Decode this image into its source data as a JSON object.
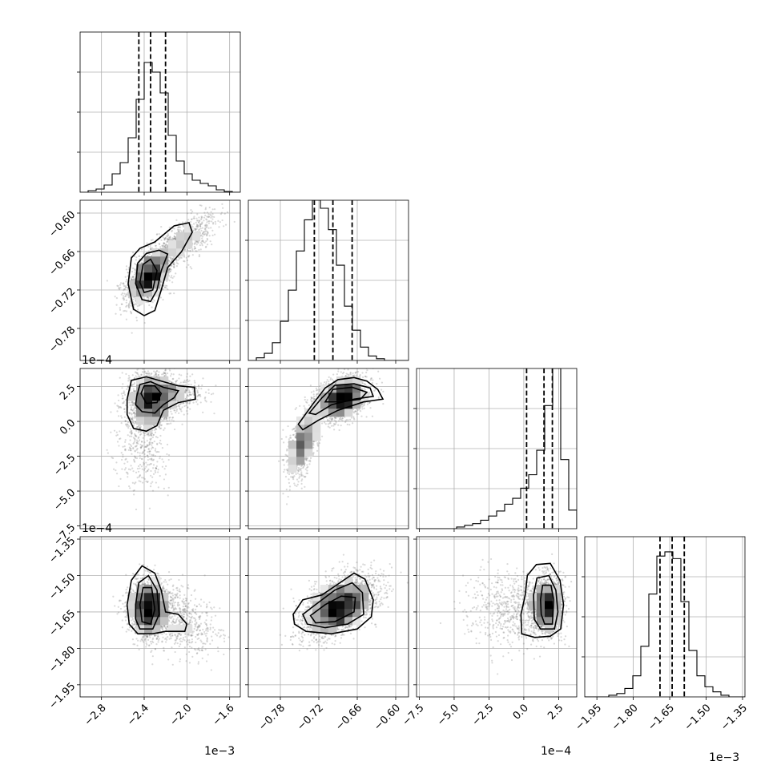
{
  "chart_data": {
    "type": "corner",
    "parameters": [
      {
        "range": [
          -3.0,
          -1.5
        ],
        "ticks": [
          -2.8,
          -2.4,
          -2.0,
          -1.6
        ],
        "tick_labels": [
          "−2.8",
          "−2.4",
          "−2.0",
          "−1.6"
        ],
        "offset_label": "1e−3",
        "quantiles": [
          -2.45,
          -2.34,
          -2.2
        ]
      },
      {
        "range": [
          -0.83,
          -0.58
        ],
        "ticks": [
          -0.78,
          -0.72,
          -0.66,
          -0.6
        ],
        "tick_labels": [
          "−0.78",
          "−0.72",
          "−0.66",
          "−0.60"
        ],
        "offset_label": "1e−4",
        "quantiles": [
          -0.727,
          -0.698,
          -0.668
        ]
      },
      {
        "range": [
          -7.7,
          3.8
        ],
        "ticks": [
          -7.5,
          -5.0,
          -2.5,
          0.0,
          2.5
        ],
        "tick_labels": [
          "−7.5",
          "−5.0",
          "−2.5",
          "0.0",
          "2.5"
        ],
        "offset_label": "1e−4",
        "quantiles": [
          0.2,
          1.45,
          2.05
        ]
      },
      {
        "range": [
          -2.0,
          -1.34
        ],
        "ticks": [
          -1.95,
          -1.8,
          -1.65,
          -1.5,
          -1.35
        ],
        "tick_labels": [
          "−1.95",
          "−1.80",
          "−1.65",
          "−1.50",
          "−1.35"
        ],
        "offset_label": "1e−3",
        "quantiles": [
          -1.69,
          -1.64,
          -1.59
        ]
      }
    ],
    "histograms": [
      {
        "param": 0,
        "edges_start": -3.0,
        "bin_width": 0.075,
        "counts": [
          0,
          2,
          4,
          9,
          23,
          37,
          68,
          116,
          162,
          150,
          124,
          71,
          39,
          23,
          15,
          11,
          8,
          3,
          1,
          0
        ],
        "ymax": 200
      },
      {
        "param": 1,
        "edges_start": -0.83,
        "bin_width": 0.0125,
        "counts": [
          0,
          3,
          8,
          20,
          44,
          79,
          123,
          158,
          180,
          171,
          147,
          107,
          61,
          34,
          15,
          5,
          2,
          0,
          0,
          0
        ],
        "ymax": 180
      },
      {
        "param": 2,
        "edges_start": -7.7,
        "bin_width": 0.575,
        "counts": [
          0,
          0,
          0,
          0,
          0,
          2,
          4,
          6,
          10,
          15,
          21,
          29,
          36,
          48,
          64,
          93,
          146,
          190,
          82,
          22
        ],
        "ymax": 190
      },
      {
        "param": 3,
        "edges_start": -2.0,
        "bin_width": 0.033,
        "counts": [
          0,
          0,
          0,
          2,
          4,
          10,
          25,
          60,
          122,
          167,
          172,
          164,
          113,
          55,
          25,
          12,
          6,
          2,
          0,
          0
        ],
        "ymax": 190
      }
    ],
    "scatter_2d": [
      {
        "x_param": 0,
        "y_param": 1,
        "components": [
          {
            "mx": -2.36,
            "my": -0.7,
            "sx": 0.1,
            "sy": 0.02,
            "rho": 0.55,
            "w": 0.7
          },
          {
            "mx": -2.05,
            "my": -0.645,
            "sx": 0.16,
            "sy": 0.022,
            "rho": 0.7,
            "w": 0.3
          }
        ],
        "contours": [
          [
            [
              -2.55,
              -0.71
            ],
            [
              -2.52,
              -0.67
            ],
            [
              -2.44,
              -0.655
            ],
            [
              -2.3,
              -0.645
            ],
            [
              -2.12,
              -0.62
            ],
            [
              -1.98,
              -0.615
            ],
            [
              -1.95,
              -0.63
            ],
            [
              -2.05,
              -0.66
            ],
            [
              -2.18,
              -0.685
            ],
            [
              -2.24,
              -0.72
            ],
            [
              -2.3,
              -0.752
            ],
            [
              -2.4,
              -0.76
            ],
            [
              -2.5,
              -0.75
            ]
          ],
          [
            [
              -2.48,
              -0.71
            ],
            [
              -2.46,
              -0.678
            ],
            [
              -2.38,
              -0.663
            ],
            [
              -2.26,
              -0.658
            ],
            [
              -2.18,
              -0.664
            ],
            [
              -2.24,
              -0.69
            ],
            [
              -2.28,
              -0.72
            ],
            [
              -2.34,
              -0.738
            ],
            [
              -2.42,
              -0.735
            ]
          ],
          [
            [
              -2.44,
              -0.708
            ],
            [
              -2.41,
              -0.68
            ],
            [
              -2.34,
              -0.672
            ],
            [
              -2.28,
              -0.69
            ],
            [
              -2.32,
              -0.72
            ],
            [
              -2.4,
              -0.724
            ]
          ]
        ]
      },
      {
        "x_param": 0,
        "y_param": 2,
        "components": [
          {
            "mx": -2.33,
            "my": 1.6,
            "sx": 0.11,
            "sy": 1.0,
            "rho": 0.1,
            "w": 0.65
          },
          {
            "mx": -2.15,
            "my": 2.0,
            "sx": 0.15,
            "sy": 0.5,
            "rho": 0.0,
            "w": 0.2
          },
          {
            "mx": -2.42,
            "my": -1.8,
            "sx": 0.12,
            "sy": 1.6,
            "rho": 0.0,
            "w": 0.15
          }
        ],
        "contours": [
          [
            [
              -2.56,
              1.6
            ],
            [
              -2.52,
              2.95
            ],
            [
              -2.38,
              3.2
            ],
            [
              -2.22,
              2.85
            ],
            [
              -2.08,
              2.55
            ],
            [
              -1.93,
              2.45
            ],
            [
              -1.92,
              1.6
            ],
            [
              -2.08,
              1.35
            ],
            [
              -2.22,
              0.8
            ],
            [
              -2.28,
              -0.3
            ],
            [
              -2.38,
              -0.7
            ],
            [
              -2.5,
              -0.5
            ],
            [
              -2.56,
              0.5
            ]
          ],
          [
            [
              -2.47,
              1.8
            ],
            [
              -2.44,
              2.65
            ],
            [
              -2.34,
              2.85
            ],
            [
              -2.22,
              2.45
            ],
            [
              -2.08,
              2.2
            ],
            [
              -2.12,
              1.7
            ],
            [
              -2.22,
              1.2
            ],
            [
              -2.3,
              0.6
            ],
            [
              -2.42,
              0.7
            ],
            [
              -2.48,
              1.2
            ]
          ],
          [
            [
              -2.43,
              2.0
            ],
            [
              -2.4,
              2.55
            ],
            [
              -2.3,
              2.55
            ],
            [
              -2.24,
              2.0
            ],
            [
              -2.28,
              1.35
            ],
            [
              -2.38,
              1.3
            ]
          ]
        ]
      },
      {
        "x_param": 1,
        "y_param": 2,
        "components": [
          {
            "mx": -0.685,
            "my": 1.7,
            "sx": 0.02,
            "sy": 0.8,
            "rho": 0.3,
            "w": 0.65
          },
          {
            "mx": -0.745,
            "my": -1.6,
            "sx": 0.012,
            "sy": 1.2,
            "rho": 0.5,
            "w": 0.35
          }
        ],
        "contours": [
          [
            [
              -0.752,
              -0.2
            ],
            [
              -0.73,
              1.2
            ],
            [
              -0.71,
              2.4
            ],
            [
              -0.69,
              3.0
            ],
            [
              -0.665,
              3.15
            ],
            [
              -0.645,
              2.9
            ],
            [
              -0.628,
              2.3
            ],
            [
              -0.62,
              1.6
            ],
            [
              -0.65,
              1.4
            ],
            [
              -0.69,
              0.8
            ],
            [
              -0.72,
              0.1
            ],
            [
              -0.745,
              -0.6
            ]
          ],
          [
            [
              -0.735,
              0.6
            ],
            [
              -0.715,
              1.7
            ],
            [
              -0.695,
              2.6
            ],
            [
              -0.665,
              2.7
            ],
            [
              -0.64,
              2.4
            ],
            [
              -0.635,
              1.8
            ],
            [
              -0.665,
              1.6
            ],
            [
              -0.7,
              1.2
            ],
            [
              -0.725,
              0.5
            ]
          ],
          [
            [
              -0.71,
              1.4
            ],
            [
              -0.698,
              2.3
            ],
            [
              -0.668,
              2.45
            ],
            [
              -0.645,
              2.1
            ],
            [
              -0.655,
              1.6
            ],
            [
              -0.685,
              1.4
            ]
          ]
        ]
      },
      {
        "x_param": 0,
        "y_param": 3,
        "components": [
          {
            "mx": -2.36,
            "my": -1.635,
            "sx": 0.09,
            "sy": 0.058,
            "rho": 0.0,
            "w": 0.75
          },
          {
            "mx": -2.08,
            "my": -1.68,
            "sx": 0.18,
            "sy": 0.07,
            "rho": -0.4,
            "w": 0.25
          }
        ],
        "contours": [
          [
            [
              -2.56,
              -1.62
            ],
            [
              -2.52,
              -1.52
            ],
            [
              -2.42,
              -1.46
            ],
            [
              -2.3,
              -1.49
            ],
            [
              -2.24,
              -1.56
            ],
            [
              -2.2,
              -1.65
            ],
            [
              -2.08,
              -1.66
            ],
            [
              -2.0,
              -1.7
            ],
            [
              -2.02,
              -1.73
            ],
            [
              -2.2,
              -1.73
            ],
            [
              -2.32,
              -1.74
            ],
            [
              -2.46,
              -1.74
            ],
            [
              -2.54,
              -1.7
            ]
          ],
          [
            [
              -2.48,
              -1.62
            ],
            [
              -2.45,
              -1.53
            ],
            [
              -2.36,
              -1.5
            ],
            [
              -2.28,
              -1.56
            ],
            [
              -2.26,
              -1.66
            ],
            [
              -2.32,
              -1.72
            ],
            [
              -2.44,
              -1.72
            ],
            [
              -2.48,
              -1.68
            ]
          ],
          [
            [
              -2.44,
              -1.62
            ],
            [
              -2.41,
              -1.55
            ],
            [
              -2.33,
              -1.55
            ],
            [
              -2.3,
              -1.64
            ],
            [
              -2.34,
              -1.7
            ],
            [
              -2.42,
              -1.69
            ]
          ]
        ]
      },
      {
        "x_param": 1,
        "y_param": 3,
        "components": [
          {
            "mx": -0.688,
            "my": -1.625,
            "sx": 0.028,
            "sy": 0.06,
            "rho": 0.45,
            "w": 1.0
          }
        ],
        "contours": [
          [
            [
              -0.76,
              -1.66
            ],
            [
              -0.745,
              -1.6
            ],
            [
              -0.715,
              -1.58
            ],
            [
              -0.69,
              -1.535
            ],
            [
              -0.665,
              -1.49
            ],
            [
              -0.648,
              -1.515
            ],
            [
              -0.635,
              -1.6
            ],
            [
              -0.638,
              -1.67
            ],
            [
              -0.66,
              -1.72
            ],
            [
              -0.7,
              -1.74
            ],
            [
              -0.74,
              -1.73
            ],
            [
              -0.758,
              -1.7
            ]
          ],
          [
            [
              -0.745,
              -1.66
            ],
            [
              -0.725,
              -1.62
            ],
            [
              -0.695,
              -1.56
            ],
            [
              -0.668,
              -1.53
            ],
            [
              -0.652,
              -1.57
            ],
            [
              -0.65,
              -1.66
            ],
            [
              -0.675,
              -1.7
            ],
            [
              -0.71,
              -1.715
            ],
            [
              -0.738,
              -1.7
            ]
          ],
          [
            [
              -0.733,
              -1.665
            ],
            [
              -0.71,
              -1.62
            ],
            [
              -0.685,
              -1.585
            ],
            [
              -0.663,
              -1.59
            ],
            [
              -0.665,
              -1.65
            ],
            [
              -0.695,
              -1.69
            ],
            [
              -0.725,
              -1.695
            ]
          ]
        ]
      },
      {
        "x_param": 2,
        "y_param": 3,
        "components": [
          {
            "mx": 1.6,
            "my": -1.625,
            "sx": 0.55,
            "sy": 0.055,
            "rho": 0.0,
            "w": 0.75
          },
          {
            "mx": -0.8,
            "my": -1.64,
            "sx": 1.6,
            "sy": 0.08,
            "rho": 0.0,
            "w": 0.25
          }
        ],
        "contours": [
          [
            [
              0.1,
              -1.58
            ],
            [
              0.25,
              -1.5
            ],
            [
              0.9,
              -1.455
            ],
            [
              1.9,
              -1.45
            ],
            [
              2.6,
              -1.52
            ],
            [
              2.85,
              -1.62
            ],
            [
              2.65,
              -1.72
            ],
            [
              1.9,
              -1.75
            ],
            [
              0.8,
              -1.755
            ],
            [
              -0.15,
              -1.74
            ],
            [
              -0.2,
              -1.66
            ]
          ],
          [
            [
              0.7,
              -1.58
            ],
            [
              0.95,
              -1.51
            ],
            [
              1.8,
              -1.5
            ],
            [
              2.3,
              -1.56
            ],
            [
              2.45,
              -1.65
            ],
            [
              2.2,
              -1.72
            ],
            [
              1.2,
              -1.72
            ],
            [
              0.75,
              -1.68
            ]
          ],
          [
            [
              1.2,
              -1.6
            ],
            [
              1.35,
              -1.54
            ],
            [
              1.95,
              -1.54
            ],
            [
              2.15,
              -1.6
            ],
            [
              2.05,
              -1.7
            ],
            [
              1.5,
              -1.7
            ],
            [
              1.25,
              -1.66
            ]
          ]
        ]
      }
    ]
  }
}
